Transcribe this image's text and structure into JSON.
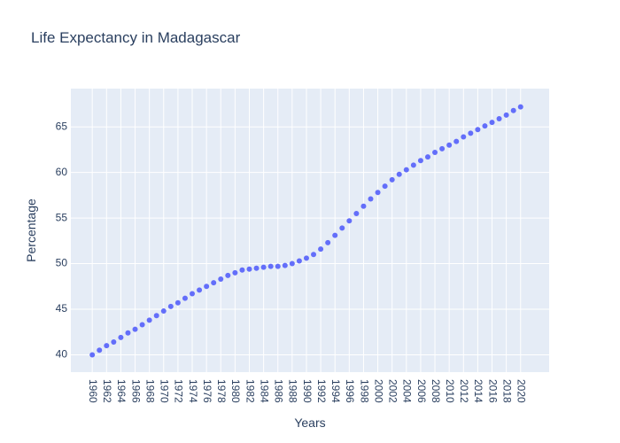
{
  "chart_data": {
    "type": "scatter",
    "title": "Life Expectancy in Madagascar",
    "xlabel": "Years",
    "ylabel": "Percentage",
    "xlim": [
      1957,
      2024
    ],
    "ylim": [
      38.1,
      69.2
    ],
    "x_ticks": [
      1960,
      1962,
      1964,
      1966,
      1968,
      1970,
      1972,
      1974,
      1976,
      1978,
      1980,
      1982,
      1984,
      1986,
      1988,
      1990,
      1992,
      1994,
      1996,
      1998,
      2000,
      2002,
      2004,
      2006,
      2008,
      2010,
      2012,
      2014,
      2016,
      2018,
      2020
    ],
    "y_ticks": [
      40,
      45,
      50,
      55,
      60,
      65
    ],
    "grid": true,
    "marker_color": "#636efa",
    "plot_bg": "#e5ecf6",
    "series": [
      {
        "x": [
          1960,
          1961,
          1962,
          1963,
          1964,
          1965,
          1966,
          1967,
          1968,
          1969,
          1970,
          1971,
          1972,
          1973,
          1974,
          1975,
          1976,
          1977,
          1978,
          1979,
          1980,
          1981,
          1982,
          1983,
          1984,
          1985,
          1986,
          1987,
          1988,
          1989,
          1990,
          1991,
          1992,
          1993,
          1994,
          1995,
          1996,
          1997,
          1998,
          1999,
          2000,
          2001,
          2002,
          2003,
          2004,
          2005,
          2006,
          2007,
          2008,
          2009,
          2010,
          2011,
          2012,
          2013,
          2014,
          2015,
          2016,
          2017,
          2018,
          2019,
          2020
        ],
        "values": [
          40.0,
          40.5,
          41.0,
          41.4,
          41.9,
          42.4,
          42.8,
          43.3,
          43.8,
          44.3,
          44.8,
          45.3,
          45.7,
          46.2,
          46.7,
          47.1,
          47.5,
          47.9,
          48.3,
          48.7,
          49.0,
          49.3,
          49.4,
          49.5,
          49.6,
          49.7,
          49.7,
          49.8,
          50.0,
          50.3,
          50.6,
          51.0,
          51.6,
          52.3,
          53.1,
          53.9,
          54.7,
          55.5,
          56.3,
          57.1,
          57.8,
          58.5,
          59.2,
          59.8,
          60.3,
          60.8,
          61.3,
          61.7,
          62.2,
          62.6,
          63.0,
          63.4,
          63.9,
          64.3,
          64.7,
          65.1,
          65.5,
          65.9,
          66.3,
          66.8,
          67.2
        ]
      }
    ]
  }
}
